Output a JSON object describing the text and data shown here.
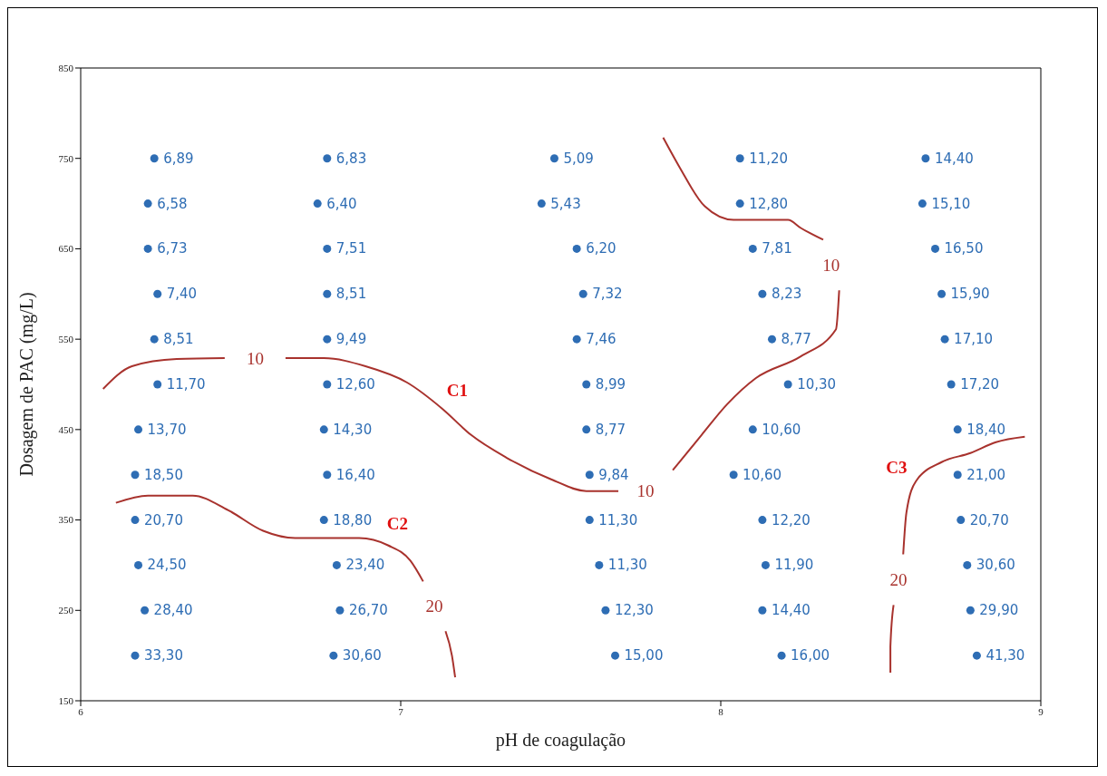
{
  "chart_data": {
    "type": "scatter",
    "xlabel": "pH de coagulação",
    "ylabel": "Dosagem de PAC (mg/L)",
    "xlim": [
      6,
      9
    ],
    "xticks": [
      6,
      7,
      8,
      9
    ],
    "ylim": [
      150,
      850
    ],
    "yticks": [
      150,
      250,
      350,
      450,
      550,
      650,
      750,
      850
    ],
    "grid": false,
    "legend": false,
    "line_style": "solid",
    "marker": "circle",
    "series": [
      {
        "color": "#2e6db4",
        "x": [
          6.23,
          6.21,
          6.21,
          6.24,
          6.23,
          6.24,
          6.18,
          6.17,
          6.17,
          6.18,
          6.2,
          6.17,
          6.77,
          6.74,
          6.77,
          6.77,
          6.77,
          6.77,
          6.76,
          6.77,
          6.76,
          6.8,
          6.81,
          6.79,
          7.48,
          7.44,
          7.55,
          7.57,
          7.55,
          7.58,
          7.58,
          7.59,
          7.59,
          7.62,
          7.64,
          7.67,
          8.06,
          8.06,
          8.1,
          8.13,
          8.16,
          8.21,
          8.1,
          8.04,
          8.13,
          8.14,
          8.13,
          8.19,
          8.64,
          8.63,
          8.67,
          8.69,
          8.7,
          8.72,
          8.74,
          8.74,
          8.75,
          8.77,
          8.78,
          8.8
        ],
        "values": [
          750,
          700,
          650,
          600,
          550,
          500,
          450,
          400,
          350,
          300,
          250,
          200,
          750,
          700,
          650,
          600,
          550,
          500,
          450,
          400,
          350,
          300,
          250,
          200,
          750,
          700,
          650,
          600,
          550,
          500,
          450,
          400,
          350,
          300,
          250,
          200,
          750,
          700,
          650,
          600,
          550,
          500,
          450,
          400,
          350,
          300,
          250,
          200,
          750,
          700,
          650,
          600,
          550,
          500,
          450,
          400,
          350,
          300,
          250,
          200
        ]
      },
      {
        "type": "line",
        "marker": "none",
        "color": "#a8322d",
        "x": [
          6.07,
          6.16,
          6.3,
          6.45,
          6.55,
          6.64,
          6.76,
          6.89,
          7.02,
          7.13,
          7.22,
          7.33,
          7.47,
          7.58,
          7.68
        ],
        "values": [
          495,
          520,
          528,
          529,
          null,
          529,
          529,
          520,
          502,
          473,
          444,
          419,
          395,
          382,
          382
        ]
      },
      {
        "type": "line",
        "marker": "none",
        "color": "#a8322d",
        "x": [
          7.82,
          7.87,
          7.95,
          8.04,
          8.21,
          8.25,
          8.32,
          8.35,
          8.37,
          8.36,
          8.25,
          8.11,
          8.02,
          7.94,
          7.85
        ],
        "values": [
          773,
          741,
          697,
          682,
          682,
          673,
          660,
          null,
          604,
          561,
          531,
          507,
          478,
          444,
          405
        ]
      },
      {
        "type": "line",
        "marker": "none",
        "color": "#a8322d",
        "x": [
          6.11,
          6.21,
          6.35,
          6.46,
          6.57,
          6.67,
          6.87,
          6.96,
          7.03,
          7.07,
          7.11,
          7.14,
          7.16,
          7.17
        ],
        "values": [
          369,
          377,
          377,
          361,
          338,
          330,
          330,
          322,
          305,
          282,
          null,
          227,
          200,
          176
        ]
      },
      {
        "type": "line",
        "marker": "none",
        "color": "#a8322d",
        "x": [
          8.95,
          8.86,
          8.78,
          8.69,
          8.61,
          8.58,
          8.57,
          8.56,
          8.54,
          8.53,
          8.53
        ],
        "values": [
          442,
          436,
          424,
          414,
          393,
          358,
          312,
          null,
          256,
          210,
          181
        ]
      }
    ],
    "annotations": [
      {
        "text": "10",
        "x": 6.45,
        "y": 529
      },
      {
        "text": "10",
        "x": 7.68,
        "y": 382
      },
      {
        "text": "10",
        "x": 8.32,
        "y": 660
      },
      {
        "text": "20",
        "x": 7.07,
        "y": 282
      },
      {
        "text": "20",
        "x": 8.57,
        "y": 312
      },
      {
        "text": "C1",
        "x": 7.13,
        "y": 473
      },
      {
        "text": "C2",
        "x": 6.96,
        "y": 322
      },
      {
        "text": "C3",
        "x": 8.61,
        "y": 393
      },
      {
        "text": "6,89",
        "x": 6.23,
        "y": 750
      },
      {
        "text": "6,58",
        "x": 6.21,
        "y": 700
      },
      {
        "text": "6,73",
        "x": 6.21,
        "y": 650
      },
      {
        "text": "7,40",
        "x": 6.24,
        "y": 600
      },
      {
        "text": "8,51",
        "x": 6.23,
        "y": 550
      },
      {
        "text": "11,70",
        "x": 6.24,
        "y": 500
      },
      {
        "text": "13,70",
        "x": 6.18,
        "y": 450
      },
      {
        "text": "18,50",
        "x": 6.17,
        "y": 400
      },
      {
        "text": "20,70",
        "x": 6.17,
        "y": 350
      },
      {
        "text": "24,50",
        "x": 6.18,
        "y": 300
      },
      {
        "text": "28,40",
        "x": 6.2,
        "y": 250
      },
      {
        "text": "33,30",
        "x": 6.17,
        "y": 200
      },
      {
        "text": "6,83",
        "x": 6.77,
        "y": 750
      },
      {
        "text": "6,40",
        "x": 6.74,
        "y": 700
      },
      {
        "text": "7,51",
        "x": 6.77,
        "y": 650
      },
      {
        "text": "8,51",
        "x": 6.77,
        "y": 600
      },
      {
        "text": "9,49",
        "x": 6.77,
        "y": 550
      },
      {
        "text": "12,60",
        "x": 6.77,
        "y": 500
      },
      {
        "text": "14,30",
        "x": 6.76,
        "y": 450
      },
      {
        "text": "16,40",
        "x": 6.77,
        "y": 400
      },
      {
        "text": "18,80",
        "x": 6.76,
        "y": 350
      },
      {
        "text": "23,40",
        "x": 6.8,
        "y": 300
      },
      {
        "text": "26,70",
        "x": 6.81,
        "y": 250
      },
      {
        "text": "30,60",
        "x": 6.79,
        "y": 200
      },
      {
        "text": "5,09",
        "x": 7.48,
        "y": 750
      },
      {
        "text": "5,43",
        "x": 7.44,
        "y": 700
      },
      {
        "text": "6,20",
        "x": 7.55,
        "y": 650
      },
      {
        "text": "7,32",
        "x": 7.57,
        "y": 600
      },
      {
        "text": "7,46",
        "x": 7.55,
        "y": 550
      },
      {
        "text": "8,99",
        "x": 7.58,
        "y": 500
      },
      {
        "text": "8,77",
        "x": 7.58,
        "y": 450
      },
      {
        "text": "9,84",
        "x": 7.59,
        "y": 400
      },
      {
        "text": "11,30",
        "x": 7.59,
        "y": 350
      },
      {
        "text": "11,30",
        "x": 7.62,
        "y": 300
      },
      {
        "text": "12,30",
        "x": 7.64,
        "y": 250
      },
      {
        "text": "15,00",
        "x": 7.67,
        "y": 200
      },
      {
        "text": "11,20",
        "x": 8.06,
        "y": 750
      },
      {
        "text": "12,80",
        "x": 8.06,
        "y": 700
      },
      {
        "text": "7,81",
        "x": 8.1,
        "y": 650
      },
      {
        "text": "8,23",
        "x": 8.13,
        "y": 600
      },
      {
        "text": "8,77",
        "x": 8.16,
        "y": 550
      },
      {
        "text": "10,30",
        "x": 8.21,
        "y": 500
      },
      {
        "text": "10,60",
        "x": 8.1,
        "y": 450
      },
      {
        "text": "10,60",
        "x": 8.04,
        "y": 400
      },
      {
        "text": "12,20",
        "x": 8.13,
        "y": 350
      },
      {
        "text": "11,90",
        "x": 8.14,
        "y": 300
      },
      {
        "text": "14,40",
        "x": 8.13,
        "y": 250
      },
      {
        "text": "16,00",
        "x": 8.19,
        "y": 200
      },
      {
        "text": "14,40",
        "x": 8.64,
        "y": 750
      },
      {
        "text": "15,10",
        "x": 8.63,
        "y": 700
      },
      {
        "text": "16,50",
        "x": 8.67,
        "y": 650
      },
      {
        "text": "15,90",
        "x": 8.69,
        "y": 600
      },
      {
        "text": "17,10",
        "x": 8.7,
        "y": 550
      },
      {
        "text": "17,20",
        "x": 8.72,
        "y": 500
      },
      {
        "text": "18,40",
        "x": 8.74,
        "y": 450
      },
      {
        "text": "21,00",
        "x": 8.74,
        "y": 400
      },
      {
        "text": "20,70",
        "x": 8.75,
        "y": 350
      },
      {
        "text": "30,60",
        "x": 8.77,
        "y": 300
      },
      {
        "text": "29,90",
        "x": 8.78,
        "y": 250
      },
      {
        "text": "41,30",
        "x": 8.8,
        "y": 200
      }
    ]
  }
}
